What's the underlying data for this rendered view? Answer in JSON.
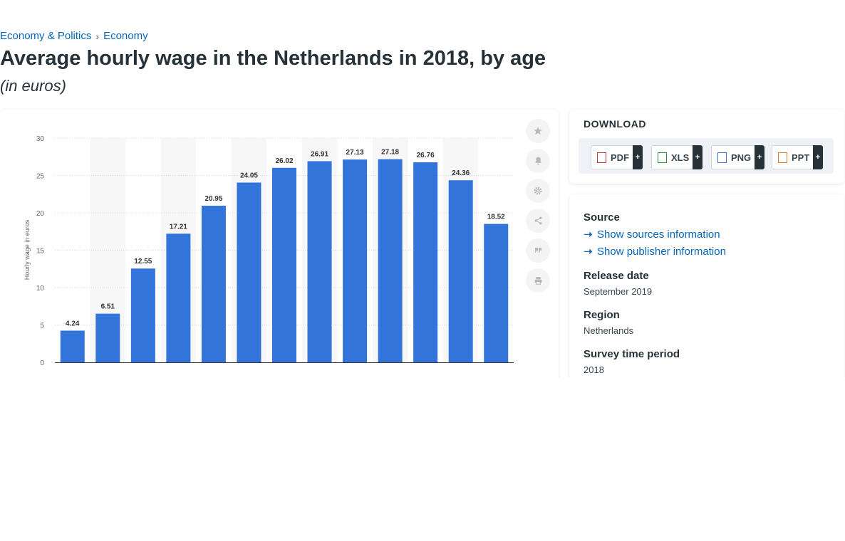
{
  "breadcrumb": {
    "first": "Economy & Politics",
    "second": "Economy"
  },
  "page": {
    "title": "Average hourly wage in the Netherlands in 2018, by age",
    "subtitle": "(in euros)"
  },
  "toolbar_icons": [
    "star-icon",
    "bell-icon",
    "gear-icon",
    "share-icon",
    "quote-icon",
    "print-icon"
  ],
  "download": {
    "heading": "DOWNLOAD",
    "buttons": [
      {
        "label": "PDF",
        "plus": "+"
      },
      {
        "label": "XLS",
        "plus": "+"
      },
      {
        "label": "PNG",
        "plus": "+"
      },
      {
        "label": "PPT",
        "plus": "+"
      }
    ]
  },
  "info": {
    "source_label": "Source",
    "show_sources": "Show sources information",
    "show_publisher": "Show publisher information",
    "release_label": "Release date",
    "release_value": "September 2019",
    "region_label": "Region",
    "region_value": "Netherlands",
    "period_label": "Survey time period",
    "period_value": "2018"
  },
  "colors": {
    "bar": "#3274d9",
    "link": "#0666b8",
    "band": "#f7f7f7"
  },
  "chart_data": {
    "type": "bar",
    "categories": [
      "",
      "",
      "",
      "",
      "",
      "",
      "",
      "",
      "",
      "",
      "",
      "",
      ""
    ],
    "values": [
      4.24,
      6.51,
      12.55,
      17.21,
      20.95,
      24.05,
      26.02,
      26.91,
      27.13,
      27.18,
      26.76,
      24.36,
      18.52
    ],
    "data_labels": [
      "4.24",
      "6.51",
      "12.55",
      "17.21",
      "20.95",
      "24.05",
      "26.02",
      "26.91",
      "27.13",
      "27.18",
      "26.76",
      "24.36",
      "18.52"
    ],
    "ylabel": "Hourly wage in euros",
    "ylim": [
      0,
      30
    ],
    "yticks": [
      0,
      5,
      10,
      15,
      20,
      25,
      30
    ],
    "ytick_labels": [
      "0",
      "5",
      "10",
      "15",
      "20",
      "25",
      "30"
    ],
    "grid": true
  }
}
